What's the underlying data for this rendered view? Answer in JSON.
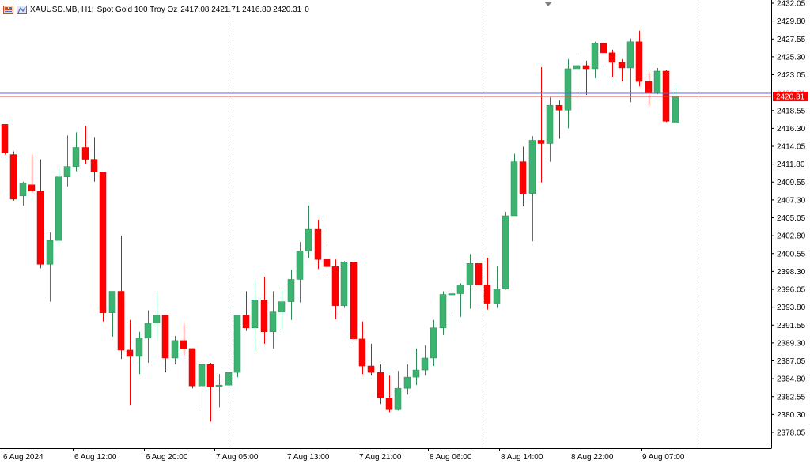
{
  "header": {
    "symbol": "XAUUSD.MB, H1:",
    "description": "Spot Gold 100 Troy Oz",
    "ohlc": "2417.08 2421.71 2416.80 2420.31",
    "volume": "0"
  },
  "colors": {
    "bull": "#3cb371",
    "bear": "#ff0000",
    "wick_bull": "#2e8b57",
    "wick_bear": "#ff0000",
    "bid_line": "#d9534f",
    "ask_line": "#5b6bd6",
    "grid": "#000000",
    "axis": "#000000",
    "price_label_bg": "#ff0000"
  },
  "chart_data": {
    "type": "candlestick",
    "y_range": [
      2377.0,
      2432.05
    ],
    "y_ticks": [
      "2432.05",
      "2429.80",
      "2427.55",
      "2425.30",
      "2423.05",
      "2420.31",
      "2418.55",
      "2416.30",
      "2414.05",
      "2411.80",
      "2409.55",
      "2407.30",
      "2405.05",
      "2402.80",
      "2400.55",
      "2398.30",
      "2396.05",
      "2393.80",
      "2391.55",
      "2389.30",
      "2387.05",
      "2384.80",
      "2382.55",
      "2380.30",
      "2378.05"
    ],
    "x_labels": [
      "6 Aug 2024",
      "6 Aug 12:00",
      "6 Aug 20:00",
      "7 Aug 05:00",
      "7 Aug 13:00",
      "7 Aug 21:00",
      "8 Aug 06:00",
      "8 Aug 14:00",
      "8 Aug 22:00",
      "9 Aug 07:00"
    ],
    "day_separators_after_bar": [
      25,
      53,
      77
    ],
    "current_price": "2420.31",
    "ask_price": "2420.71",
    "candles": [
      {
        "o": 2416.8,
        "h": 2416.8,
        "l": 2413.0,
        "c": 2413.2
      },
      {
        "o": 2413.0,
        "h": 2413.4,
        "l": 2407.2,
        "c": 2407.4
      },
      {
        "o": 2407.8,
        "h": 2409.6,
        "l": 2406.6,
        "c": 2409.4
      },
      {
        "o": 2409.2,
        "h": 2413.0,
        "l": 2408.2,
        "c": 2408.4
      },
      {
        "o": 2408.4,
        "h": 2412.4,
        "l": 2398.7,
        "c": 2399.2
      },
      {
        "o": 2399.2,
        "h": 2403.2,
        "l": 2394.5,
        "c": 2402.2
      },
      {
        "o": 2402.2,
        "h": 2411.2,
        "l": 2401.8,
        "c": 2410.2
      },
      {
        "o": 2410.2,
        "h": 2415.4,
        "l": 2409.0,
        "c": 2411.5
      },
      {
        "o": 2411.5,
        "h": 2415.8,
        "l": 2410.9,
        "c": 2413.9
      },
      {
        "o": 2413.9,
        "h": 2416.6,
        "l": 2411.8,
        "c": 2412.4
      },
      {
        "o": 2412.4,
        "h": 2415.2,
        "l": 2409.6,
        "c": 2410.8
      },
      {
        "o": 2410.8,
        "h": 2410.8,
        "l": 2392.0,
        "c": 2393.1
      },
      {
        "o": 2393.1,
        "h": 2395.8,
        "l": 2390.1,
        "c": 2395.8
      },
      {
        "o": 2395.8,
        "h": 2402.8,
        "l": 2387.3,
        "c": 2388.4
      },
      {
        "o": 2388.4,
        "h": 2392.2,
        "l": 2381.5,
        "c": 2387.6
      },
      {
        "o": 2387.6,
        "h": 2390.7,
        "l": 2385.4,
        "c": 2389.9
      },
      {
        "o": 2389.9,
        "h": 2393.4,
        "l": 2386.8,
        "c": 2391.8
      },
      {
        "o": 2391.8,
        "h": 2395.6,
        "l": 2389.8,
        "c": 2392.8
      },
      {
        "o": 2392.8,
        "h": 2392.8,
        "l": 2385.6,
        "c": 2387.4
      },
      {
        "o": 2387.4,
        "h": 2390.2,
        "l": 2386.6,
        "c": 2389.6
      },
      {
        "o": 2389.6,
        "h": 2391.8,
        "l": 2387.8,
        "c": 2388.6
      },
      {
        "o": 2388.6,
        "h": 2388.6,
        "l": 2383.6,
        "c": 2383.9
      },
      {
        "o": 2383.9,
        "h": 2387.0,
        "l": 2380.8,
        "c": 2386.6
      },
      {
        "o": 2386.6,
        "h": 2386.8,
        "l": 2379.4,
        "c": 2383.8
      },
      {
        "o": 2383.8,
        "h": 2385.4,
        "l": 2381.2,
        "c": 2384.0
      },
      {
        "o": 2384.0,
        "h": 2387.6,
        "l": 2383.2,
        "c": 2385.6
      },
      {
        "o": 2385.6,
        "h": 2392.6,
        "l": 2385.0,
        "c": 2392.8
      },
      {
        "o": 2392.8,
        "h": 2395.8,
        "l": 2390.8,
        "c": 2391.2
      },
      {
        "o": 2391.2,
        "h": 2397.2,
        "l": 2388.2,
        "c": 2394.7
      },
      {
        "o": 2394.7,
        "h": 2397.6,
        "l": 2389.2,
        "c": 2390.7
      },
      {
        "o": 2390.7,
        "h": 2395.8,
        "l": 2388.6,
        "c": 2393.2
      },
      {
        "o": 2393.2,
        "h": 2396.0,
        "l": 2391.0,
        "c": 2394.5
      },
      {
        "o": 2394.5,
        "h": 2398.5,
        "l": 2392.2,
        "c": 2397.3
      },
      {
        "o": 2397.3,
        "h": 2402.0,
        "l": 2394.4,
        "c": 2400.9
      },
      {
        "o": 2400.9,
        "h": 2406.6,
        "l": 2400.0,
        "c": 2403.6
      },
      {
        "o": 2403.6,
        "h": 2404.8,
        "l": 2398.6,
        "c": 2399.8
      },
      {
        "o": 2399.8,
        "h": 2401.9,
        "l": 2397.7,
        "c": 2398.9
      },
      {
        "o": 2398.9,
        "h": 2399.8,
        "l": 2392.3,
        "c": 2394.0
      },
      {
        "o": 2394.0,
        "h": 2399.6,
        "l": 2393.7,
        "c": 2399.5
      },
      {
        "o": 2399.5,
        "h": 2399.5,
        "l": 2389.4,
        "c": 2389.8
      },
      {
        "o": 2389.8,
        "h": 2392.0,
        "l": 2385.4,
        "c": 2386.4
      },
      {
        "o": 2386.4,
        "h": 2389.2,
        "l": 2385.2,
        "c": 2385.6
      },
      {
        "o": 2385.6,
        "h": 2386.6,
        "l": 2381.6,
        "c": 2382.4
      },
      {
        "o": 2382.4,
        "h": 2385.2,
        "l": 2380.6,
        "c": 2380.9
      },
      {
        "o": 2380.9,
        "h": 2385.8,
        "l": 2380.8,
        "c": 2383.6
      },
      {
        "o": 2383.6,
        "h": 2386.6,
        "l": 2382.8,
        "c": 2385.0
      },
      {
        "o": 2385.0,
        "h": 2388.6,
        "l": 2384.0,
        "c": 2385.9
      },
      {
        "o": 2385.9,
        "h": 2389.0,
        "l": 2385.2,
        "c": 2387.4
      },
      {
        "o": 2387.4,
        "h": 2392.2,
        "l": 2386.4,
        "c": 2391.2
      },
      {
        "o": 2391.2,
        "h": 2395.8,
        "l": 2390.3,
        "c": 2395.4
      },
      {
        "o": 2395.4,
        "h": 2396.2,
        "l": 2393.3,
        "c": 2395.5
      },
      {
        "o": 2395.5,
        "h": 2396.8,
        "l": 2392.6,
        "c": 2396.6
      },
      {
        "o": 2396.6,
        "h": 2400.5,
        "l": 2393.6,
        "c": 2399.3
      },
      {
        "o": 2399.3,
        "h": 2399.3,
        "l": 2393.6,
        "c": 2396.6
      },
      {
        "o": 2396.6,
        "h": 2400.0,
        "l": 2393.5,
        "c": 2394.3
      },
      {
        "o": 2394.3,
        "h": 2399.0,
        "l": 2393.7,
        "c": 2396.1
      },
      {
        "o": 2396.1,
        "h": 2405.8,
        "l": 2396.0,
        "c": 2405.3
      },
      {
        "o": 2405.3,
        "h": 2413.1,
        "l": 2405.3,
        "c": 2412.1
      },
      {
        "o": 2412.1,
        "h": 2414.0,
        "l": 2406.5,
        "c": 2408.1
      },
      {
        "o": 2408.1,
        "h": 2415.3,
        "l": 2402.1,
        "c": 2414.8
      },
      {
        "o": 2414.8,
        "h": 2424.0,
        "l": 2409.5,
        "c": 2414.4
      },
      {
        "o": 2414.4,
        "h": 2420.2,
        "l": 2412.1,
        "c": 2419.2
      },
      {
        "o": 2419.2,
        "h": 2419.8,
        "l": 2415.0,
        "c": 2418.6
      },
      {
        "o": 2418.6,
        "h": 2425.0,
        "l": 2416.3,
        "c": 2423.8
      },
      {
        "o": 2423.8,
        "h": 2425.8,
        "l": 2420.4,
        "c": 2424.2
      },
      {
        "o": 2424.2,
        "h": 2424.8,
        "l": 2420.5,
        "c": 2423.8
      },
      {
        "o": 2423.8,
        "h": 2427.2,
        "l": 2422.6,
        "c": 2427.0
      },
      {
        "o": 2427.0,
        "h": 2427.2,
        "l": 2424.2,
        "c": 2425.8
      },
      {
        "o": 2425.8,
        "h": 2426.2,
        "l": 2422.8,
        "c": 2424.6
      },
      {
        "o": 2424.6,
        "h": 2425.0,
        "l": 2422.2,
        "c": 2423.9
      },
      {
        "o": 2423.9,
        "h": 2427.6,
        "l": 2419.6,
        "c": 2427.2
      },
      {
        "o": 2427.2,
        "h": 2428.6,
        "l": 2421.6,
        "c": 2422.2
      },
      {
        "o": 2422.2,
        "h": 2423.4,
        "l": 2419.2,
        "c": 2420.7
      },
      {
        "o": 2420.7,
        "h": 2423.9,
        "l": 2420.6,
        "c": 2423.5
      },
      {
        "o": 2423.5,
        "h": 2423.6,
        "l": 2417.1,
        "c": 2417.2
      },
      {
        "o": 2417.08,
        "h": 2421.71,
        "l": 2416.8,
        "c": 2420.31
      }
    ]
  }
}
